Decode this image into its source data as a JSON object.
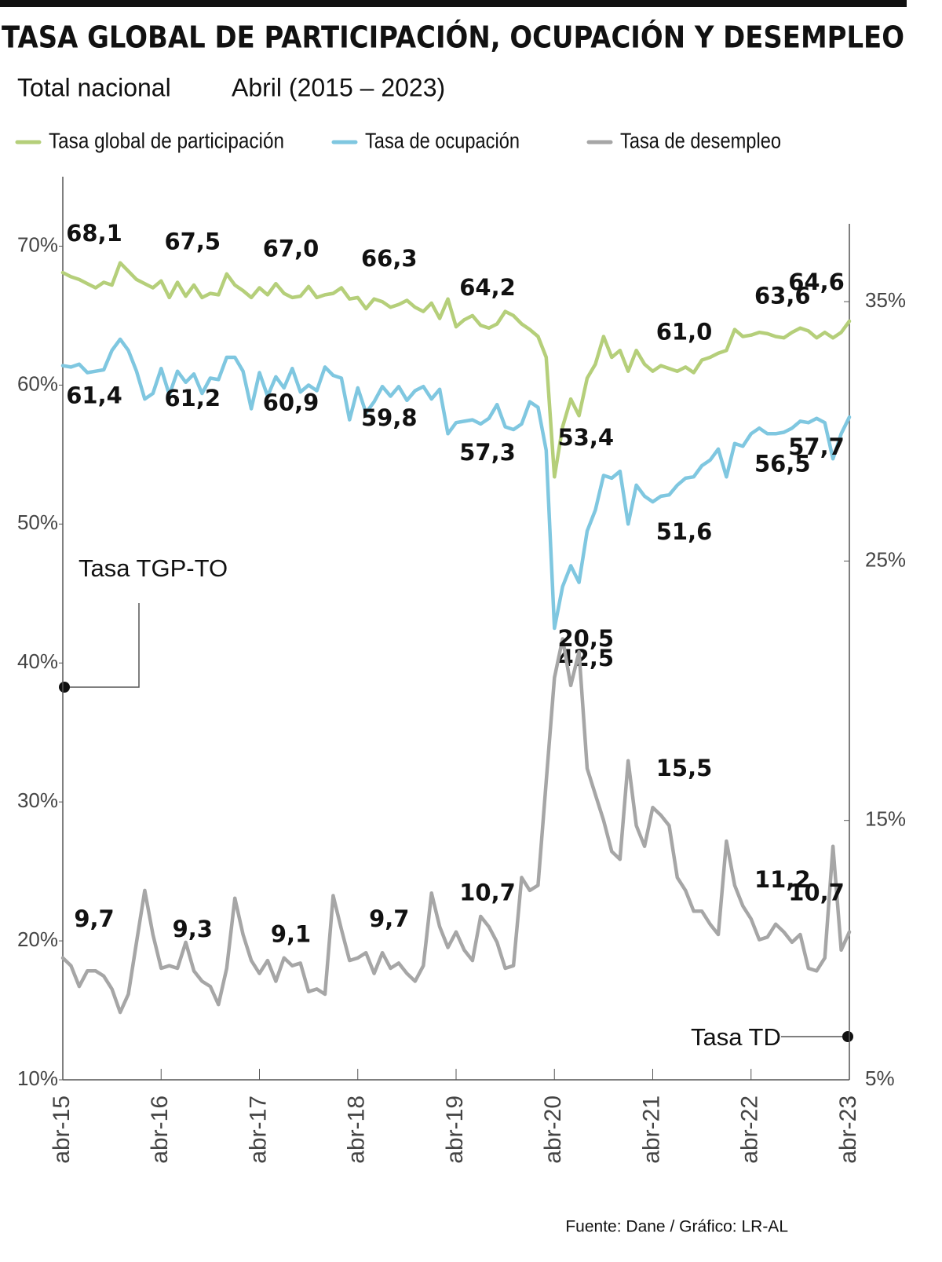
{
  "chart_data": {
    "type": "line",
    "title": "TASA GLOBAL DE PARTICIPACIÓN, OCUPACIÓN Y DESEMPLEO",
    "subtitle": [
      "Total nacional",
      "Abril (2015 – 2023)"
    ],
    "source": "Fuente: Dane / Gráfico: LR-AL",
    "annotations": [
      "Tasa TGP-TO",
      "Tasa TD"
    ],
    "categories": [
      "abr-15",
      null,
      null,
      null,
      null,
      null,
      null,
      null,
      null,
      null,
      null,
      null,
      "abr-16",
      null,
      null,
      null,
      null,
      null,
      null,
      null,
      null,
      null,
      null,
      null,
      "abr-17",
      null,
      null,
      null,
      null,
      null,
      null,
      null,
      null,
      null,
      null,
      null,
      "abr-18",
      null,
      null,
      null,
      null,
      null,
      null,
      null,
      null,
      null,
      null,
      null,
      "abr-19",
      null,
      null,
      null,
      null,
      null,
      null,
      null,
      null,
      null,
      null,
      null,
      "abr-20",
      null,
      null,
      null,
      null,
      null,
      null,
      null,
      null,
      null,
      null,
      null,
      "abr-21",
      null,
      null,
      null,
      null,
      null,
      null,
      null,
      null,
      null,
      null,
      null,
      "abr-22",
      null,
      null,
      null,
      null,
      null,
      null,
      null,
      null,
      null,
      null,
      null,
      "abr-23"
    ],
    "series": [
      {
        "name": "Tasa global de participación",
        "color": "#b5cf7a",
        "values": [
          68.1,
          67.8,
          67.6,
          67.3,
          67.0,
          67.4,
          67.2,
          68.8,
          68.2,
          67.6,
          67.3,
          67.0,
          67.5,
          66.3,
          67.4,
          66.4,
          67.2,
          66.3,
          66.6,
          66.5,
          68.0,
          67.2,
          66.8,
          66.3,
          67.0,
          66.5,
          67.3,
          66.6,
          66.3,
          66.4,
          67.1,
          66.3,
          66.5,
          66.6,
          67.0,
          66.2,
          66.3,
          65.5,
          66.2,
          66.0,
          65.6,
          65.8,
          66.1,
          65.6,
          65.3,
          65.9,
          64.8,
          66.2,
          64.2,
          64.7,
          65.0,
          64.3,
          64.1,
          64.4,
          65.3,
          65.0,
          64.4,
          64.0,
          63.5,
          62.0,
          53.4,
          57.0,
          59.0,
          57.8,
          60.5,
          61.5,
          63.5,
          62.0,
          62.5,
          61.0,
          62.5,
          61.5,
          61.0,
          61.4,
          61.2,
          61.0,
          61.3,
          60.9,
          61.8,
          62.0,
          62.3,
          62.5,
          64.0,
          63.5,
          63.6,
          63.8,
          63.7,
          63.5,
          63.4,
          63.8,
          64.1,
          63.9,
          63.4,
          63.8,
          63.4,
          63.8,
          64.6
        ],
        "value_labels": [
          "68,1",
          null,
          null,
          null,
          null,
          null,
          null,
          null,
          null,
          null,
          null,
          null,
          "67,5",
          null,
          null,
          null,
          null,
          null,
          null,
          null,
          null,
          null,
          null,
          null,
          "67,0",
          null,
          null,
          null,
          null,
          null,
          null,
          null,
          null,
          null,
          null,
          null,
          "66,3",
          null,
          null,
          null,
          null,
          null,
          null,
          null,
          null,
          null,
          null,
          null,
          "64,2",
          null,
          null,
          null,
          null,
          null,
          null,
          null,
          null,
          null,
          null,
          null,
          "53,4",
          null,
          null,
          null,
          null,
          null,
          null,
          null,
          null,
          null,
          null,
          null,
          "61,0",
          null,
          null,
          null,
          null,
          null,
          null,
          null,
          null,
          null,
          null,
          null,
          "63,6",
          null,
          null,
          null,
          null,
          null,
          null,
          null,
          null,
          null,
          null,
          null,
          "64,6"
        ]
      },
      {
        "name": "Tasa de ocupación",
        "color": "#7fc7e0",
        "values": [
          61.4,
          61.3,
          61.5,
          60.9,
          61.0,
          61.1,
          62.5,
          63.3,
          62.5,
          61.0,
          59.0,
          59.4,
          61.2,
          59.3,
          61.0,
          60.2,
          60.8,
          59.4,
          60.5,
          60.4,
          62.0,
          62.0,
          61.0,
          58.3,
          60.9,
          59.2,
          60.6,
          59.8,
          61.2,
          59.5,
          60.0,
          59.6,
          61.3,
          60.7,
          60.5,
          57.5,
          59.8,
          58.0,
          58.8,
          59.9,
          59.2,
          59.9,
          58.9,
          59.6,
          59.9,
          59.0,
          59.7,
          56.5,
          57.3,
          57.4,
          57.5,
          57.2,
          57.6,
          58.6,
          57.0,
          56.8,
          57.2,
          58.8,
          58.4,
          55.3,
          42.5,
          45.5,
          47.0,
          45.8,
          49.5,
          51.0,
          53.5,
          53.3,
          53.8,
          50.0,
          52.8,
          52.0,
          51.6,
          52.0,
          52.1,
          52.8,
          53.3,
          53.4,
          54.2,
          54.6,
          55.4,
          53.4,
          55.8,
          55.6,
          56.5,
          56.9,
          56.5,
          56.5,
          56.6,
          56.9,
          57.4,
          57.3,
          57.6,
          57.3,
          54.7,
          56.5,
          57.7
        ],
        "value_labels": [
          "61,4",
          null,
          null,
          null,
          null,
          null,
          null,
          null,
          null,
          null,
          null,
          null,
          "61,2",
          null,
          null,
          null,
          null,
          null,
          null,
          null,
          null,
          null,
          null,
          null,
          "60,9",
          null,
          null,
          null,
          null,
          null,
          null,
          null,
          null,
          null,
          null,
          null,
          "59,8",
          null,
          null,
          null,
          null,
          null,
          null,
          null,
          null,
          null,
          null,
          null,
          "57,3",
          null,
          null,
          null,
          null,
          null,
          null,
          null,
          null,
          null,
          null,
          null,
          "42,5",
          null,
          null,
          null,
          null,
          null,
          null,
          null,
          null,
          null,
          null,
          null,
          "51,6",
          null,
          null,
          null,
          null,
          null,
          null,
          null,
          null,
          null,
          null,
          null,
          "56,5",
          null,
          null,
          null,
          null,
          null,
          null,
          null,
          null,
          null,
          null,
          null,
          "57,7"
        ]
      },
      {
        "name": "Tasa de desempleo",
        "color": "#a6a6a6",
        "axis": "y2",
        "values": [
          9.7,
          9.4,
          8.6,
          9.2,
          9.2,
          9.0,
          8.5,
          7.6,
          8.3,
          10.3,
          12.3,
          10.6,
          9.3,
          9.4,
          9.3,
          10.3,
          9.2,
          8.8,
          8.6,
          7.9,
          9.3,
          12.0,
          10.6,
          9.6,
          9.1,
          9.6,
          8.8,
          9.7,
          9.4,
          9.5,
          8.4,
          8.5,
          8.3,
          12.1,
          10.8,
          9.6,
          9.7,
          9.9,
          9.1,
          9.9,
          9.3,
          9.5,
          9.1,
          8.8,
          9.4,
          12.2,
          10.9,
          10.1,
          10.7,
          10.0,
          9.6,
          11.3,
          10.9,
          10.3,
          9.3,
          9.4,
          12.8,
          12.3,
          12.5,
          16.5,
          20.5,
          22.0,
          20.2,
          21.5,
          17.0,
          16.0,
          15.0,
          13.8,
          13.5,
          17.3,
          14.8,
          14.0,
          15.5,
          15.2,
          14.8,
          12.8,
          12.3,
          11.5,
          11.5,
          11.0,
          10.6,
          14.2,
          12.5,
          11.7,
          11.2,
          10.4,
          10.5,
          11.0,
          10.7,
          10.3,
          10.6,
          9.3,
          9.2,
          9.7,
          14.0,
          10.0,
          10.7
        ],
        "value_labels": [
          "9,7",
          null,
          null,
          null,
          null,
          null,
          null,
          null,
          null,
          null,
          null,
          null,
          "9,3",
          null,
          null,
          null,
          null,
          null,
          null,
          null,
          null,
          null,
          null,
          null,
          "9,1",
          null,
          null,
          null,
          null,
          null,
          null,
          null,
          null,
          null,
          null,
          null,
          "9,7",
          null,
          null,
          null,
          null,
          null,
          null,
          null,
          null,
          null,
          null,
          null,
          "10,7",
          null,
          null,
          null,
          null,
          null,
          null,
          null,
          null,
          null,
          null,
          null,
          "20,5",
          null,
          null,
          null,
          null,
          null,
          null,
          null,
          null,
          null,
          null,
          null,
          "15,5",
          null,
          null,
          null,
          null,
          null,
          null,
          null,
          null,
          null,
          null,
          null,
          "11,2",
          null,
          null,
          null,
          null,
          null,
          null,
          null,
          null,
          null,
          null,
          null,
          "10,7"
        ]
      }
    ],
    "ylim": [
      10,
      75
    ],
    "yticks": [
      {
        "value": 10,
        "label": "10%"
      },
      {
        "value": 20,
        "label": "20%"
      },
      {
        "value": 30,
        "label": "30%"
      },
      {
        "value": 40,
        "label": "40%"
      },
      {
        "value": 50,
        "label": "50%"
      },
      {
        "value": 60,
        "label": "60%"
      },
      {
        "value": 70,
        "label": "70%"
      }
    ],
    "y2lim": [
      5,
      38
    ],
    "y2ticks": [
      {
        "value": 5,
        "label": "5%"
      },
      {
        "value": 15,
        "label": "15%"
      },
      {
        "value": 25,
        "label": "25%"
      },
      {
        "value": 35,
        "label": "35%"
      }
    ],
    "grid": false,
    "legend": "top"
  }
}
